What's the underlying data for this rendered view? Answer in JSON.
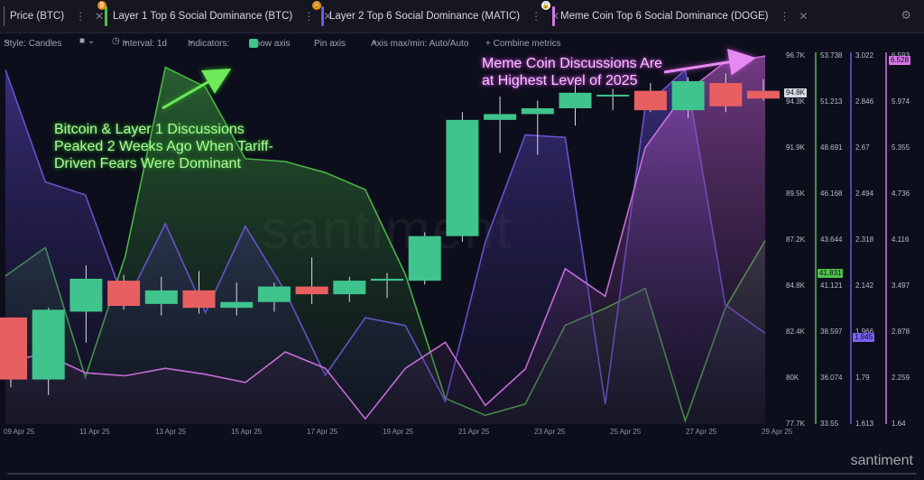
{
  "tabs": [
    {
      "label": "Price (BTC)",
      "color": "#6b6e82",
      "icon": "",
      "dots": "⋮",
      "close": "✕"
    },
    {
      "label": "Layer 1 Top 6 Social Dominance (BTC)",
      "color": "#4fc24a",
      "icon": "btc-badge-icon",
      "dots": "⋮",
      "close": "✕"
    },
    {
      "label": "Layer 2 Top 6 Social Dominance (MATIC)",
      "color": "#6f59d9",
      "icon": "lock-icon",
      "dots": "⋮",
      "close": "✕"
    },
    {
      "label": "Meme Coin Top 6 Social Dominance (DOGE)",
      "color": "#d674e8",
      "icon": "lock-icon",
      "dots": "⋮",
      "close": "✕"
    }
  ],
  "toolbar": {
    "style": "Style: Candles",
    "interval": "Interval: 1d",
    "indicators": "Indicators:",
    "show_axis": "Show axis",
    "pin_axis": "Pin axis",
    "axis_maxmin": "Axis max/min: Auto/Auto",
    "combine": "+ Combine metrics"
  },
  "annotations": {
    "green_lines": [
      "Bitcoin & Layer 1 Discussions",
      "Peaked 2 Weeks Ago When Tariff-",
      "Driven Fears Were Dominant"
    ],
    "pink_lines": [
      "Meme Coin Discussions Are",
      "at Highest Level of 2025"
    ]
  },
  "watermark": "santiment",
  "watermark_small": "santiment",
  "colors": {
    "up": "#3fc48e",
    "down": "#e85f62",
    "l1": "#4fc24a",
    "l2": "#6f59d9",
    "meme": "#d674e8"
  },
  "chart_data": {
    "type": "candlestick-with-lines",
    "x_labels": [
      "09 Apr 25",
      "11 Apr 25",
      "13 Apr 25",
      "15 Apr 25",
      "17 Apr 25",
      "19 Apr 25",
      "21 Apr 25",
      "23 Apr 25",
      "25 Apr 25",
      "27 Apr 25",
      "29 Apr 25"
    ],
    "price_axis": {
      "ticks": [
        "96.7K",
        "94.3K",
        "91.9K",
        "89.5K",
        "87.2K",
        "84.8K",
        "82.4K",
        "80K",
        "77.7K"
      ],
      "min": 77.7,
      "max": 96.7,
      "current": "94.8K"
    },
    "l1_axis": {
      "ticks": [
        "53.738",
        "51.213",
        "48.691",
        "46.168",
        "43.644",
        "41.121",
        "38.597",
        "36.074",
        "33.55"
      ],
      "min": 33.55,
      "max": 53.738,
      "current": "41.831"
    },
    "l2_axis": {
      "ticks": [
        "3.022",
        "2.846",
        "2.67",
        "2.494",
        "2.318",
        "2.142",
        "1.966",
        "1.79",
        "1.613"
      ],
      "min": 1.613,
      "max": 3.022,
      "current": "1.945"
    },
    "meme_axis": {
      "ticks": [
        "6.593",
        "5.974",
        "5.355",
        "4.736",
        "4.116",
        "3.497",
        "2.878",
        "2.259",
        "1.64"
      ],
      "min": 1.64,
      "max": 6.593,
      "current": "6.528"
    },
    "candles": [
      {
        "o": 83.2,
        "h": 83.2,
        "l": 79.6,
        "c": 80.0
      },
      {
        "o": 80.0,
        "h": 83.7,
        "l": 79.2,
        "c": 83.6
      },
      {
        "o": 83.5,
        "h": 85.9,
        "l": 81.9,
        "c": 85.2
      },
      {
        "o": 85.1,
        "h": 85.4,
        "l": 83.6,
        "c": 83.8
      },
      {
        "o": 83.9,
        "h": 85.3,
        "l": 83.3,
        "c": 84.6
      },
      {
        "o": 84.6,
        "h": 85.6,
        "l": 83.4,
        "c": 83.7
      },
      {
        "o": 83.7,
        "h": 85.0,
        "l": 83.3,
        "c": 84.0
      },
      {
        "o": 84.0,
        "h": 85.0,
        "l": 83.5,
        "c": 84.8
      },
      {
        "o": 84.8,
        "h": 86.3,
        "l": 83.9,
        "c": 84.4
      },
      {
        "o": 84.4,
        "h": 85.3,
        "l": 84.0,
        "c": 85.1
      },
      {
        "o": 85.1,
        "h": 85.5,
        "l": 84.2,
        "c": 85.2
      },
      {
        "o": 85.1,
        "h": 87.6,
        "l": 84.9,
        "c": 87.4
      },
      {
        "o": 87.4,
        "h": 93.8,
        "l": 87.1,
        "c": 93.4
      },
      {
        "o": 93.4,
        "h": 94.6,
        "l": 91.7,
        "c": 93.7
      },
      {
        "o": 93.7,
        "h": 94.4,
        "l": 91.6,
        "c": 94.0
      },
      {
        "o": 94.0,
        "h": 95.4,
        "l": 93.1,
        "c": 94.8
      },
      {
        "o": 94.7,
        "h": 95.0,
        "l": 93.9,
        "c": 94.7
      },
      {
        "o": 94.9,
        "h": 95.3,
        "l": 93.8,
        "c": 93.9
      },
      {
        "o": 93.9,
        "h": 95.6,
        "l": 93.5,
        "c": 95.4
      },
      {
        "o": 95.3,
        "h": 95.8,
        "l": 93.8,
        "c": 94.1
      },
      {
        "o": 94.9,
        "h": 95.5,
        "l": 94.4,
        "c": 94.5
      }
    ],
    "series": [
      {
        "name": "Layer 1 Top 6 Social Dominance (BTC)",
        "values": [
          41.67,
          43.23,
          36.12,
          42.77,
          53.12,
          52.04,
          48.1,
          47.95,
          47.34,
          46.41,
          41.76,
          34.96,
          34.03,
          34.65,
          38.97,
          39.9,
          40.99,
          33.73,
          39.9,
          43.61
        ]
      },
      {
        "name": "Layer 2 Top 6 Social Dominance (MATIC)",
        "values": [
          2.97,
          2.54,
          2.49,
          2.07,
          2.38,
          2.04,
          2.37,
          2.12,
          1.8,
          2.02,
          1.99,
          1.7,
          2.31,
          2.72,
          2.71,
          1.69,
          2.83,
          2.97,
          2.07,
          1.96
        ]
      },
      {
        "name": "Meme Coin Top 6 Social Dominance (DOGE)",
        "values": [
          2.49,
          2.58,
          2.33,
          2.29,
          2.39,
          2.31,
          2.2,
          2.61,
          2.39,
          1.71,
          2.39,
          2.74,
          1.89,
          2.38,
          3.73,
          3.36,
          5.36,
          6.1,
          6.51,
          6.59
        ]
      }
    ]
  }
}
